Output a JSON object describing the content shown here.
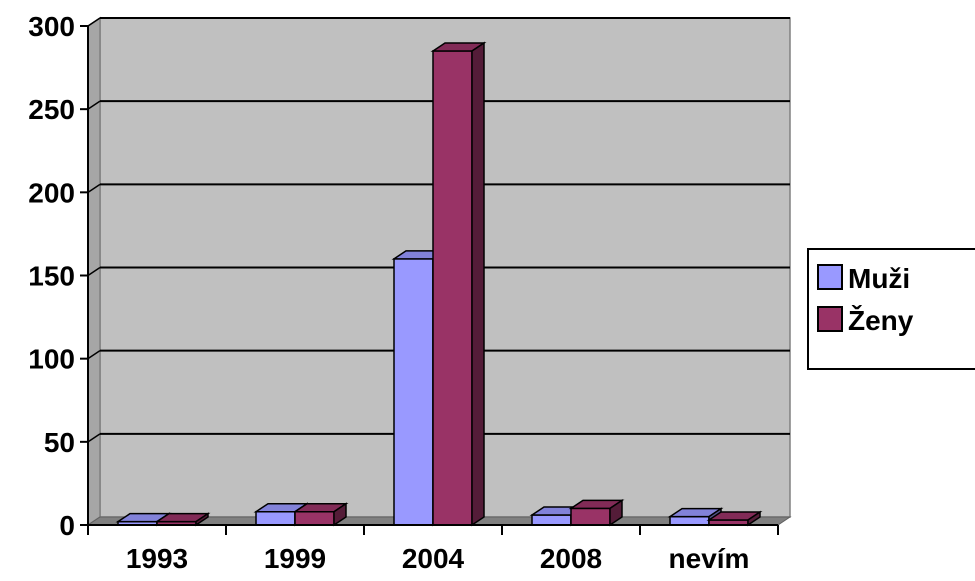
{
  "chart_data": {
    "type": "bar",
    "title": "",
    "xlabel": "",
    "ylabel": "",
    "categories": [
      "1993",
      "1999",
      "2004",
      "2008",
      "nevím"
    ],
    "series": [
      {
        "name": "Muži",
        "values": [
          2,
          8,
          160,
          6,
          5
        ],
        "color": "#9999ff"
      },
      {
        "name": "Ženy",
        "values": [
          2,
          8,
          285,
          10,
          3
        ],
        "color": "#993366"
      }
    ],
    "ylim": [
      0,
      300
    ],
    "yticks": [
      0,
      50,
      100,
      150,
      200,
      250,
      300
    ],
    "grid": true,
    "legend_position": "right",
    "style": "3d-clustered-column",
    "plot_background": "#c0c0c0"
  }
}
